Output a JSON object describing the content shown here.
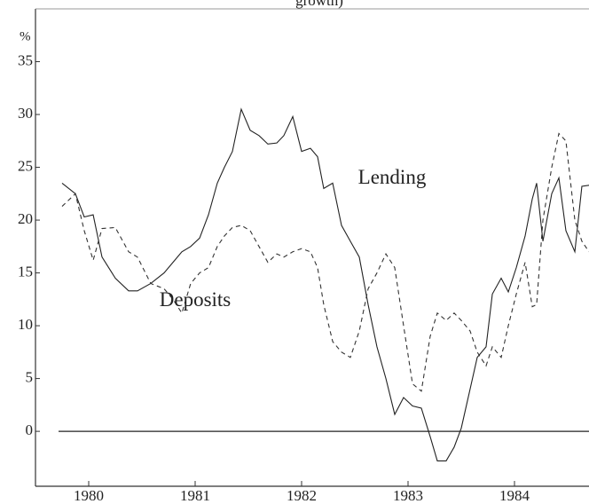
{
  "chart_data": {
    "type": "line",
    "title": "growth)",
    "ylabel": "%",
    "x": [
      1980.25,
      1980.375,
      1980.458,
      1980.542,
      1980.625,
      1980.75,
      1980.875,
      1980.958,
      1981.083,
      1981.208,
      1981.292,
      1981.375,
      1981.458,
      1981.542,
      1981.625,
      1981.708,
      1981.775,
      1981.85,
      1981.933,
      1982.017,
      1982.1,
      1982.183,
      1982.267,
      1982.333,
      1982.417,
      1982.5,
      1982.583,
      1982.65,
      1982.708,
      1982.792,
      1982.875,
      1982.958,
      1983.042,
      1983.125,
      1983.208,
      1983.292,
      1983.375,
      1983.458,
      1983.542,
      1983.625,
      1983.708,
      1983.775,
      1983.858,
      1983.933,
      1984.0,
      1984.083,
      1984.15,
      1984.233,
      1984.292,
      1984.375,
      1984.442,
      1984.517,
      1984.6,
      1984.667,
      1984.708,
      1984.767,
      1984.85,
      1984.917,
      1984.983,
      1985.067,
      1985.133,
      1985.2
    ],
    "series": [
      {
        "name": "Lending",
        "color": "#222222",
        "dash": "none",
        "values": [
          23.5,
          22.5,
          20.3,
          20.5,
          16.5,
          14.5,
          13.3,
          13.3,
          14,
          15,
          16,
          17,
          17.5,
          18.3,
          20.5,
          23.5,
          25,
          26.5,
          30.5,
          28.5,
          28,
          27.2,
          27.3,
          28,
          29.8,
          26.5,
          26.8,
          26,
          23,
          23.5,
          19.5,
          18,
          16.5,
          12,
          8,
          5,
          1.6,
          3.2,
          2.4,
          2.2,
          -0.5,
          -2.8,
          -2.8,
          -1.5,
          0.3,
          4,
          7,
          8,
          13,
          14.5,
          13.2,
          15.5,
          18.5,
          22,
          23.5,
          18,
          22.5,
          24,
          19,
          17,
          23.2,
          23.3
        ],
        "label_at": [
          1983.35,
          23.9
        ]
      },
      {
        "name": "Deposits",
        "color": "#333333",
        "dash": "5 4",
        "values": [
          21.3,
          22.5,
          19,
          16.2,
          19.2,
          19.3,
          17,
          16.5,
          14,
          13.5,
          12.5,
          11.2,
          14,
          15,
          15.5,
          17.5,
          18.5,
          19.3,
          19.5,
          19,
          17.5,
          16,
          16.8,
          16.5,
          17,
          17.3,
          17,
          15.5,
          12,
          8.5,
          7.5,
          7,
          9.5,
          13.5,
          15,
          16.8,
          15.5,
          10,
          4.5,
          3.8,
          9,
          11.2,
          10.5,
          11.2,
          10.5,
          9.5,
          7.5,
          6.2,
          8,
          7,
          10,
          13,
          16,
          11.8,
          12,
          20,
          25,
          28.2,
          27.5,
          20,
          18,
          17
        ],
        "label_at": [
          1981.5,
          12.3
        ]
      }
    ],
    "xlim": [
      1980.0,
      1985.2
    ],
    "xticks": [
      {
        "value": 1980.5,
        "label": "1980"
      },
      {
        "value": 1981.5,
        "label": "1981"
      },
      {
        "value": 1982.5,
        "label": "1982"
      },
      {
        "value": 1983.5,
        "label": "1983"
      },
      {
        "value": 1984.5,
        "label": "1984"
      }
    ],
    "ylim": [
      -5.2,
      40
    ],
    "yticks": [
      0,
      5,
      10,
      15,
      20,
      25,
      30,
      35
    ],
    "zero_line": true
  }
}
